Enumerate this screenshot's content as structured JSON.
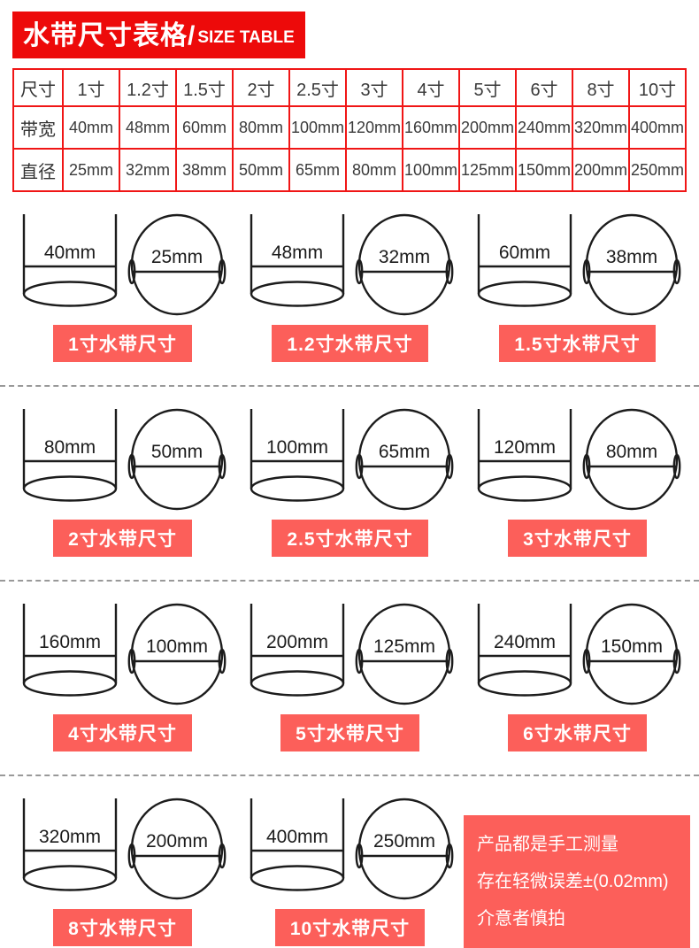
{
  "header": {
    "title_main": "水带尺寸表格/",
    "title_sub": "SIZE TABLE"
  },
  "colors": {
    "banner_red": "#ed0a0a",
    "table_border_red": "#f01616",
    "label_red": "#fc5f5a",
    "divider_gray": "#999999",
    "line_dark": "#1c1c1c"
  },
  "size_table": {
    "row_headers": [
      "尺寸",
      "带宽",
      "直径"
    ],
    "columns": [
      "1寸",
      "1.2寸",
      "1.5寸",
      "2寸",
      "2.5寸",
      "3寸",
      "4寸",
      "5寸",
      "6寸",
      "8寸",
      "10寸"
    ],
    "band_width": [
      "40mm",
      "48mm",
      "60mm",
      "80mm",
      "100mm",
      "120mm",
      "160mm",
      "200mm",
      "240mm",
      "320mm",
      "400mm"
    ],
    "diameter": [
      "25mm",
      "32mm",
      "38mm",
      "50mm",
      "65mm",
      "80mm",
      "100mm",
      "125mm",
      "150mm",
      "200mm",
      "250mm"
    ]
  },
  "diagrams": [
    {
      "flat_width": "40mm",
      "diameter": "25mm",
      "label": "1寸水带尺寸"
    },
    {
      "flat_width": "48mm",
      "diameter": "32mm",
      "label": "1.2寸水带尺寸"
    },
    {
      "flat_width": "60mm",
      "diameter": "38mm",
      "label": "1.5寸水带尺寸"
    },
    {
      "flat_width": "80mm",
      "diameter": "50mm",
      "label": "2寸水带尺寸"
    },
    {
      "flat_width": "100mm",
      "diameter": "65mm",
      "label": "2.5寸水带尺寸"
    },
    {
      "flat_width": "120mm",
      "diameter": "80mm",
      "label": "3寸水带尺寸"
    },
    {
      "flat_width": "160mm",
      "diameter": "100mm",
      "label": "4寸水带尺寸"
    },
    {
      "flat_width": "200mm",
      "diameter": "125mm",
      "label": "5寸水带尺寸"
    },
    {
      "flat_width": "240mm",
      "diameter": "150mm",
      "label": "6寸水带尺寸"
    },
    {
      "flat_width": "320mm",
      "diameter": "200mm",
      "label": "8寸水带尺寸"
    },
    {
      "flat_width": "400mm",
      "diameter": "250mm",
      "label": "10寸水带尺寸"
    }
  ],
  "note": {
    "lines": [
      "产品都是手工测量",
      "存在轻微误差±(0.02mm)",
      "介意者慎拍"
    ]
  }
}
